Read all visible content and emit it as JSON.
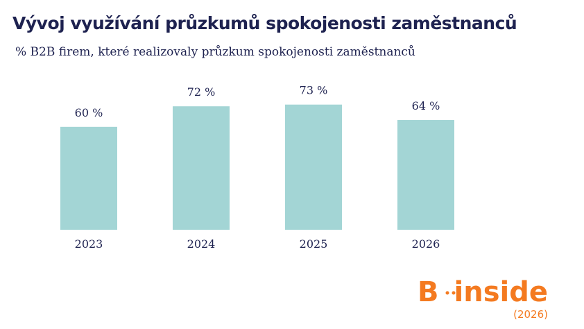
{
  "chart_data": {
    "type": "bar",
    "title": "Vývoj využívání průzkumů spokojenosti zaměstnanců",
    "subtitle": "% B2B firem, které realizovaly průzkum spokojenosti zaměstnanců",
    "categories": [
      "2023",
      "2024",
      "2025",
      "2026"
    ],
    "values": [
      60,
      72,
      73,
      64
    ],
    "value_labels": [
      "60 %",
      "72 %",
      "73 %",
      "64 %"
    ],
    "color": "#a3d5d5",
    "ylim": [
      0,
      100
    ]
  },
  "logo": {
    "letter": "B",
    "word": "inside",
    "year": "(2026)"
  }
}
